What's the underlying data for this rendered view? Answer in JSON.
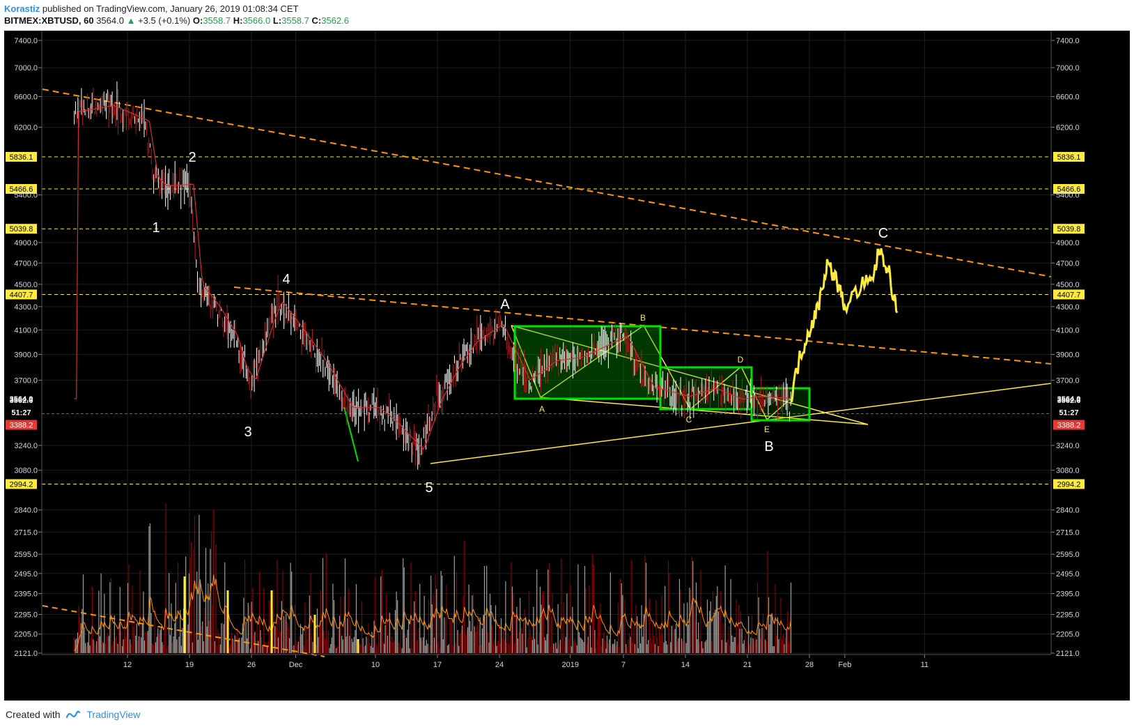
{
  "header": {
    "author": "Korastiz",
    "published_text": "published on TradingView.com, January 26, 2019 01:08:34 CET",
    "symbol": "BITMEX:XBTUSD, 60",
    "last": "3564.0",
    "change_arrow": "▲",
    "change": "+3.5 (+0.1%)",
    "o_label": "O:",
    "o": "3558.7",
    "h_label": "H:",
    "h": "3566.0",
    "l_label": "L:",
    "l": "3558.7",
    "c_label": "C:",
    "c": "3562.6"
  },
  "footer": {
    "created_text": "Created with",
    "brand": "TradingView"
  },
  "colors": {
    "background": "#000000",
    "candle_up": "#ffffff",
    "candle_down": "#b71c1c",
    "trendline": "#ff9800",
    "support": "#ffeb3b",
    "box": "#00e000",
    "level_tag": "#ffeb3b",
    "current_price_tag": "#e53935",
    "projection": "#ffeb3b"
  },
  "chart_data": {
    "type": "candlestick",
    "title": "BITMEX:XBTUSD, 60",
    "y_scale": "log",
    "ylim": [
      2080,
      7600
    ],
    "x_tick_labels": [
      "12",
      "19",
      "26",
      "Dec",
      "10",
      "17",
      "24",
      "2019",
      "7",
      "14",
      "21",
      "28",
      "Feb",
      "11"
    ],
    "y_tick_labels": [
      7400.0,
      7000.0,
      6600.0,
      6200.0,
      5400.0,
      4900.0,
      4700.0,
      4500.0,
      4300.0,
      4100.0,
      3900.0,
      3700.0,
      3240.0,
      3080.0,
      2840.0,
      2715.0,
      2595.0,
      2495.0,
      2395.0,
      2295.0,
      2205.0,
      2121.0
    ],
    "price_path": [
      {
        "date": "Nov 06",
        "price": 6400
      },
      {
        "date": "Nov 10",
        "price": 6480
      },
      {
        "date": "Nov 12",
        "price": 6380
      },
      {
        "date": "Nov 14",
        "price": 6280
      },
      {
        "date": "Nov 15",
        "price": 5600
      },
      {
        "date": "Nov 16",
        "price": 5500
      },
      {
        "date": "Nov 19",
        "price": 5520
      },
      {
        "date": "Nov 20",
        "price": 4500
      },
      {
        "date": "Nov 21",
        "price": 4400
      },
      {
        "date": "Nov 22",
        "price": 4300
      },
      {
        "date": "Nov 24",
        "price": 4050
      },
      {
        "date": "Nov 25",
        "price": 3800
      },
      {
        "date": "Nov 26",
        "price": 3700
      },
      {
        "date": "Nov 28",
        "price": 4150
      },
      {
        "date": "Nov 29",
        "price": 4350
      },
      {
        "date": "Dec 01",
        "price": 4150
      },
      {
        "date": "Dec 04",
        "price": 3850
      },
      {
        "date": "Dec 07",
        "price": 3500
      },
      {
        "date": "Dec 10",
        "price": 3500
      },
      {
        "date": "Dec 12",
        "price": 3400
      },
      {
        "date": "Dec 15",
        "price": 3210
      },
      {
        "date": "Dec 17",
        "price": 3550
      },
      {
        "date": "Dec 19",
        "price": 3800
      },
      {
        "date": "Dec 21",
        "price": 4000
      },
      {
        "date": "Dec 24",
        "price": 4150
      },
      {
        "date": "Dec 27",
        "price": 3700
      },
      {
        "date": "Dec 30",
        "price": 3850
      },
      {
        "date": "Jan 02",
        "price": 3880
      },
      {
        "date": "Jan 07",
        "price": 4050
      },
      {
        "date": "Jan 10",
        "price": 3650
      },
      {
        "date": "Jan 14",
        "price": 3580
      },
      {
        "date": "Jan 17",
        "price": 3640
      },
      {
        "date": "Jan 20",
        "price": 3560
      },
      {
        "date": "Jan 22",
        "price": 3580
      },
      {
        "date": "Jan 26",
        "price": 3564
      }
    ],
    "projection_path": [
      {
        "date": "Jan 26",
        "price": 3600
      },
      {
        "date": "Jan 27",
        "price": 3900
      },
      {
        "date": "Jan 28",
        "price": 4100
      },
      {
        "date": "Jan 29",
        "price": 4300
      },
      {
        "date": "Jan 30",
        "price": 4700
      },
      {
        "date": "Jan 31",
        "price": 4550
      },
      {
        "date": "Feb 01",
        "price": 4300
      },
      {
        "date": "Feb 03",
        "price": 4500
      },
      {
        "date": "Feb 04",
        "price": 4520
      },
      {
        "date": "Feb 05",
        "price": 4850
      },
      {
        "date": "Feb 06",
        "price": 4600
      },
      {
        "date": "Feb 07",
        "price": 4200
      }
    ],
    "horizontal_levels": [
      5836.1,
      5466.6,
      5039.8,
      4407.7,
      2994.2
    ],
    "current_price": 3564.0,
    "close_price": 3562.6,
    "countdown": "51:27",
    "countdown_price": 3388.2,
    "wave_labels_main": [
      "1",
      "2",
      "3",
      "4",
      "5",
      "A",
      "B",
      "C"
    ],
    "wave_labels_sub": [
      "A",
      "B",
      "C",
      "D",
      "E"
    ]
  }
}
